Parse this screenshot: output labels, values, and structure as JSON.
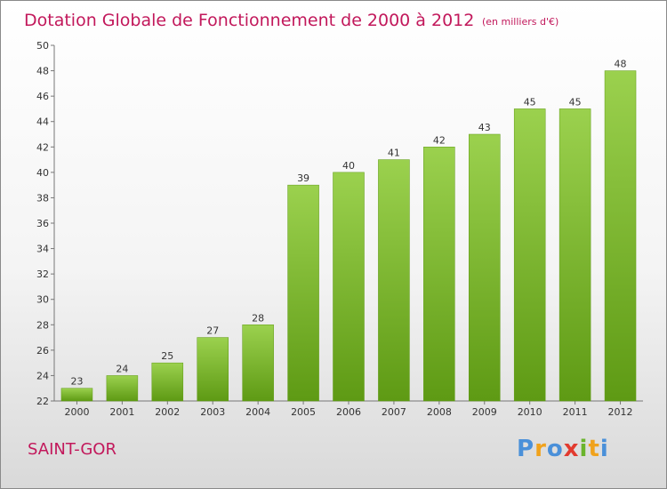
{
  "chart_data": {
    "type": "bar",
    "title": "Dotation Globale de Fonctionnement de 2000 à 2012",
    "subtitle": "(en milliers d'€)",
    "categories": [
      "2000",
      "2001",
      "2002",
      "2003",
      "2004",
      "2005",
      "2006",
      "2007",
      "2008",
      "2009",
      "2010",
      "2011",
      "2012"
    ],
    "values": [
      23,
      24,
      25,
      27,
      28,
      39,
      40,
      41,
      42,
      43,
      45,
      45,
      48
    ],
    "ylim": [
      22,
      50
    ],
    "yticks": [
      "22",
      "24",
      "26",
      "28",
      "30",
      "32",
      "34",
      "36",
      "38",
      "40",
      "42",
      "44",
      "46",
      "48",
      "50"
    ],
    "grid": false,
    "bar_color": "#8cc63f"
  },
  "commune": "SAINT-GOR",
  "logo": {
    "letters": [
      "P",
      "r",
      "o",
      "x",
      "i",
      "t",
      "i"
    ]
  }
}
